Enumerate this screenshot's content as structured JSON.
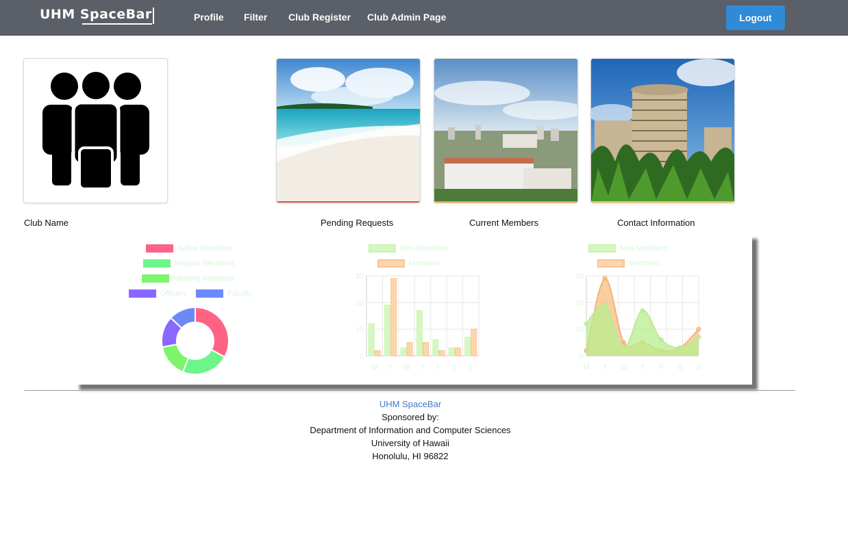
{
  "nav": {
    "brand": "UHM SpaceBar",
    "links": [
      "Profile",
      "Filter",
      "Club Register",
      "Club Admin Page"
    ],
    "logout": "Logout"
  },
  "cards": [
    {
      "caption": "Club Name",
      "icon": "club-members-icon"
    },
    {
      "caption": "Pending Requests",
      "image": "beach-photo"
    },
    {
      "caption": "Current Members",
      "image": "city-photo"
    },
    {
      "caption": "Contact Information",
      "image": "campus-building-photo"
    }
  ],
  "colors": {
    "accent": "#2f8ad8",
    "nav_bg": "#5b5f67",
    "nonmembers": "#c8f5a8",
    "members": "#f9c38e"
  },
  "chart_data": [
    {
      "type": "pie",
      "categories": [
        "Active Members",
        "Regular Members",
        "Meeting Attenders",
        "Officers",
        "Faculty"
      ],
      "values": [
        33,
        23,
        16,
        15,
        13
      ],
      "colors": [
        "#ff6384",
        "#6cf58a",
        "#7ef46c",
        "#8a68ff",
        "#6b8af8"
      ],
      "legend": "top"
    },
    {
      "type": "bar",
      "categories": [
        "M",
        "T",
        "W",
        "T",
        "F",
        "S",
        "S"
      ],
      "series": [
        {
          "name": "Non-Members",
          "values": [
            12,
            19,
            3,
            17,
            6,
            3,
            7
          ]
        },
        {
          "name": "Members",
          "values": [
            2,
            29,
            5,
            5,
            2,
            3,
            10
          ]
        }
      ],
      "ylim": [
        0,
        30
      ],
      "yticks": [
        0,
        10,
        20,
        30
      ],
      "grid": true,
      "legend": "top"
    },
    {
      "type": "area",
      "categories": [
        "M",
        "T",
        "W",
        "T",
        "F",
        "S",
        "S"
      ],
      "series": [
        {
          "name": "Non-Members",
          "values": [
            12,
            19,
            3,
            17,
            6,
            3,
            7
          ]
        },
        {
          "name": "Members",
          "values": [
            2,
            29,
            5,
            5,
            2,
            3,
            10
          ]
        }
      ],
      "ylim": [
        0,
        30
      ],
      "yticks": [
        0,
        10,
        20,
        30
      ],
      "grid": true,
      "legend": "top"
    }
  ],
  "footer": {
    "link": "UHM SpaceBar",
    "lines": [
      "Sponsored by:",
      "Department of Information and Computer Sciences",
      "University of Hawaii",
      "Honolulu, HI 96822"
    ]
  }
}
